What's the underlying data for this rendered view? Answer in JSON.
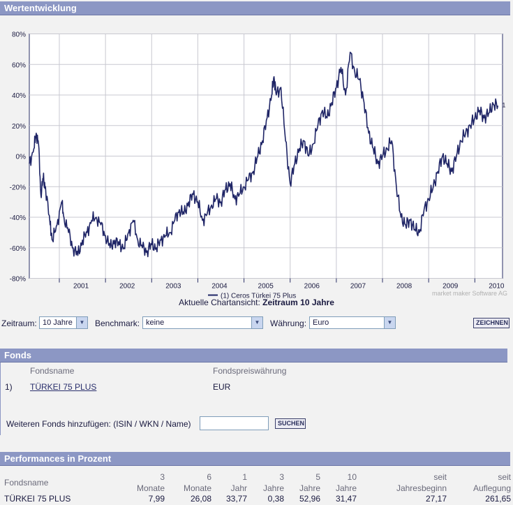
{
  "chart_section": {
    "title": "Wertentwicklung"
  },
  "chart_data": {
    "type": "line",
    "title": "Wertentwicklung",
    "x_tick_labels": [
      "2001",
      "2002",
      "2003",
      "2004",
      "2005",
      "2006",
      "2007",
      "2008",
      "2009",
      "2010"
    ],
    "y_tick_labels": [
      "80%",
      "60%",
      "40%",
      "20%",
      "0%",
      "-20%",
      "-40%",
      "-60%",
      "-80%"
    ],
    "ylim": [
      -80,
      80
    ],
    "xlim": [
      2000.35,
      2010.6
    ],
    "grid": true,
    "legend_position": "bottom-center",
    "series": [
      {
        "name": "(1)  Ceros Türkei 75 Plus",
        "end_label": "1",
        "color": "#1f2566",
        "points": [
          [
            2000.35,
            -5
          ],
          [
            2000.45,
            5
          ],
          [
            2000.5,
            15
          ],
          [
            2000.55,
            8
          ],
          [
            2000.6,
            -25
          ],
          [
            2000.65,
            -15
          ],
          [
            2000.7,
            -20
          ],
          [
            2000.8,
            -45
          ],
          [
            2000.85,
            -55
          ],
          [
            2000.95,
            -45
          ],
          [
            2001.05,
            -30
          ],
          [
            2001.1,
            -40
          ],
          [
            2001.2,
            -50
          ],
          [
            2001.3,
            -60
          ],
          [
            2001.4,
            -65
          ],
          [
            2001.5,
            -55
          ],
          [
            2001.6,
            -50
          ],
          [
            2001.7,
            -42
          ],
          [
            2001.8,
            -40
          ],
          [
            2001.9,
            -45
          ],
          [
            2002.0,
            -52
          ],
          [
            2002.1,
            -60
          ],
          [
            2002.2,
            -55
          ],
          [
            2002.3,
            -58
          ],
          [
            2002.4,
            -60
          ],
          [
            2002.5,
            -50
          ],
          [
            2002.6,
            -42
          ],
          [
            2002.7,
            -55
          ],
          [
            2002.8,
            -60
          ],
          [
            2002.9,
            -62
          ],
          [
            2003.0,
            -58
          ],
          [
            2003.1,
            -60
          ],
          [
            2003.2,
            -55
          ],
          [
            2003.3,
            -52
          ],
          [
            2003.4,
            -50
          ],
          [
            2003.5,
            -42
          ],
          [
            2003.6,
            -35
          ],
          [
            2003.7,
            -38
          ],
          [
            2003.8,
            -30
          ],
          [
            2003.9,
            -25
          ],
          [
            2004.0,
            -30
          ],
          [
            2004.1,
            -42
          ],
          [
            2004.2,
            -38
          ],
          [
            2004.3,
            -32
          ],
          [
            2004.4,
            -28
          ],
          [
            2004.5,
            -30
          ],
          [
            2004.6,
            -22
          ],
          [
            2004.7,
            -18
          ],
          [
            2004.8,
            -28
          ],
          [
            2004.9,
            -25
          ],
          [
            2005.0,
            -20
          ],
          [
            2005.1,
            -15
          ],
          [
            2005.2,
            -10
          ],
          [
            2005.3,
            0
          ],
          [
            2005.4,
            10
          ],
          [
            2005.5,
            25
          ],
          [
            2005.6,
            40
          ],
          [
            2005.65,
            52
          ],
          [
            2005.7,
            40
          ],
          [
            2005.8,
            45
          ],
          [
            2005.9,
            10
          ],
          [
            2006.0,
            -18
          ],
          [
            2006.1,
            -5
          ],
          [
            2006.2,
            5
          ],
          [
            2006.3,
            10
          ],
          [
            2006.4,
            0
          ],
          [
            2006.5,
            8
          ],
          [
            2006.6,
            20
          ],
          [
            2006.7,
            30
          ],
          [
            2006.8,
            25
          ],
          [
            2006.9,
            35
          ],
          [
            2007.0,
            45
          ],
          [
            2007.1,
            58
          ],
          [
            2007.2,
            40
          ],
          [
            2007.3,
            68
          ],
          [
            2007.4,
            55
          ],
          [
            2007.5,
            50
          ],
          [
            2007.6,
            35
          ],
          [
            2007.7,
            15
          ],
          [
            2007.8,
            5
          ],
          [
            2007.9,
            -5
          ],
          [
            2008.0,
            0
          ],
          [
            2008.1,
            5
          ],
          [
            2008.2,
            10
          ],
          [
            2008.3,
            -20
          ],
          [
            2008.4,
            -40
          ],
          [
            2008.5,
            -45
          ],
          [
            2008.6,
            -42
          ],
          [
            2008.7,
            -48
          ],
          [
            2008.8,
            -50
          ],
          [
            2008.9,
            -35
          ],
          [
            2009.0,
            -28
          ],
          [
            2009.1,
            -20
          ],
          [
            2009.2,
            -10
          ],
          [
            2009.3,
            0
          ],
          [
            2009.4,
            -5
          ],
          [
            2009.5,
            -10
          ],
          [
            2009.6,
            0
          ],
          [
            2009.7,
            10
          ],
          [
            2009.8,
            15
          ],
          [
            2009.9,
            20
          ],
          [
            2010.0,
            25
          ],
          [
            2010.1,
            30
          ],
          [
            2010.2,
            25
          ],
          [
            2010.3,
            28
          ],
          [
            2010.4,
            34
          ],
          [
            2010.5,
            33
          ]
        ]
      }
    ]
  },
  "chart_caption": {
    "prefix": "Aktuelle Chartansicht: ",
    "value": "Zeitraum 10 Jahre"
  },
  "watermark": "market maker Software AG",
  "controls": {
    "zeitraum_label": "Zeitraum:",
    "zeitraum_value": "10 Jahre",
    "benchmark_label": "Benchmark:",
    "benchmark_value": "keine",
    "waehrung_label": "Währung:",
    "waehrung_value": "Euro",
    "draw_button": "ZEICHNEN",
    "arrow_glyph": "▼"
  },
  "fonds": {
    "title": "Fonds",
    "col_name": "Fondsname",
    "col_currency": "Fondspreiswährung",
    "rows": [
      {
        "index": "1)",
        "name": "TÜRKEI 75 PLUS",
        "currency": "EUR"
      }
    ],
    "add_label": "Weiteren Fonds hinzufügen: (ISIN / WKN / Name)",
    "add_placeholder": "",
    "search_button": "SUCHEN"
  },
  "performance": {
    "title": "Performances in Prozent",
    "name_header": "Fondsname",
    "headers": [
      {
        "top": "3",
        "bottom": "Monate"
      },
      {
        "top": "6",
        "bottom": "Monate"
      },
      {
        "top": "1",
        "bottom": "Jahr"
      },
      {
        "top": "3",
        "bottom": "Jahre"
      },
      {
        "top": "5",
        "bottom": "Jahre"
      },
      {
        "top": "10",
        "bottom": "Jahre"
      },
      {
        "top": "seit",
        "bottom": "Jahresbeginn"
      },
      {
        "top": "seit",
        "bottom": "Auflegung"
      }
    ],
    "row": {
      "name": "TÜRKEI 75 PLUS",
      "values": [
        "7,99",
        "26,08",
        "33,77",
        "0,38",
        "52,96",
        "31,47",
        "27,17",
        "261,65"
      ]
    }
  }
}
